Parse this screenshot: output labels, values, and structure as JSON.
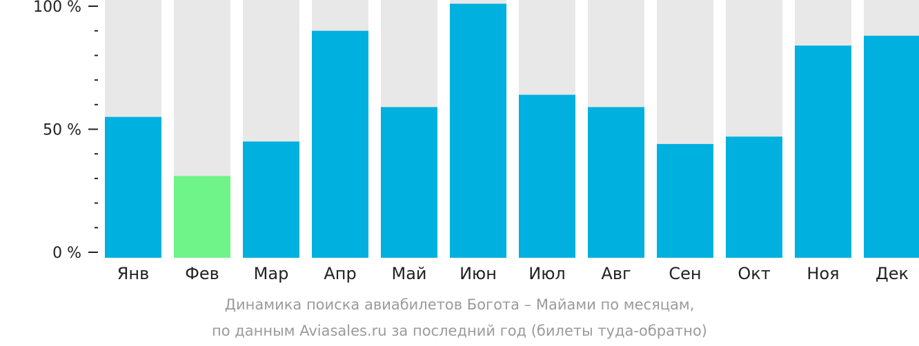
{
  "chart_data": {
    "type": "bar",
    "categories": [
      "Янв",
      "Фев",
      "Мар",
      "Апр",
      "Май",
      "Июн",
      "Июл",
      "Авг",
      "Сен",
      "Окт",
      "Ноя",
      "Дек"
    ],
    "values": [
      55,
      31,
      45,
      90,
      59,
      101,
      64,
      59,
      44,
      47,
      84,
      88
    ],
    "highlight_index": 1,
    "ylim": [
      0,
      100
    ],
    "y_ticks": [
      {
        "value": 0,
        "label": "0 %"
      },
      {
        "value": 50,
        "label": "50 %"
      },
      {
        "value": 100,
        "label": "100 %"
      }
    ],
    "y_minor_step": 10,
    "grid": false,
    "legend": "none",
    "title_lines": [
      "Динамика поиска авиабилетов Богота – Майами по месяцам,",
      "по данным Aviasales.ru за последний год (билеты туда-обратно)"
    ],
    "colors": {
      "bar": "#00b0de",
      "highlight": "#6ef488",
      "bar_background": "#e8e8e8",
      "axis": "#222222",
      "caption": "#9a9a9a"
    }
  }
}
